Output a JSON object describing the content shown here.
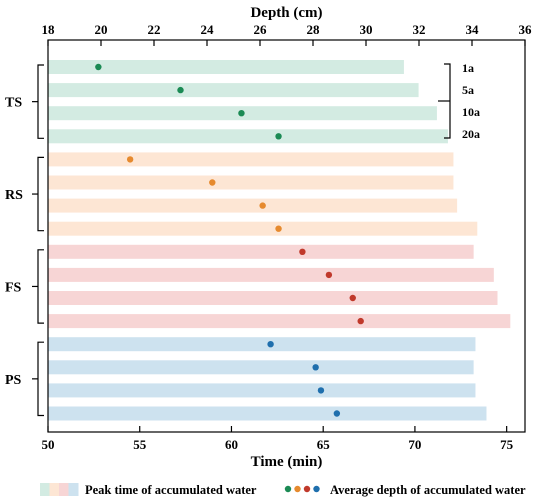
{
  "chart_data": {
    "type": "bar",
    "bottom_axis": {
      "label": "Time (min)",
      "range": [
        50,
        76
      ],
      "ticks": [
        50,
        55,
        60,
        65,
        70,
        75
      ]
    },
    "top_axis": {
      "label": "Depth (cm)",
      "range": [
        18,
        36
      ],
      "ticks": [
        18,
        20,
        22,
        24,
        26,
        28,
        30,
        32,
        34,
        36
      ]
    },
    "year_legend": [
      "1a",
      "5a",
      "10a",
      "20a"
    ],
    "groups": [
      {
        "name": "TS",
        "bar_color": "#d3ebe2",
        "dot_color": "#1b8a54",
        "rows": [
          {
            "year": "1a",
            "peak_time": 69.4,
            "avg_depth": 19.9
          },
          {
            "year": "5a",
            "peak_time": 70.2,
            "avg_depth": 23.0
          },
          {
            "year": "10a",
            "peak_time": 71.2,
            "avg_depth": 25.3
          },
          {
            "year": "20a",
            "peak_time": 71.8,
            "avg_depth": 26.7
          }
        ]
      },
      {
        "name": "RS",
        "bar_color": "#fde6d4",
        "dot_color": "#e68a2e",
        "rows": [
          {
            "year": "1a",
            "peak_time": 72.1,
            "avg_depth": 21.1
          },
          {
            "year": "5a",
            "peak_time": 72.1,
            "avg_depth": 24.2
          },
          {
            "year": "10a",
            "peak_time": 72.3,
            "avg_depth": 26.1
          },
          {
            "year": "20a",
            "peak_time": 73.4,
            "avg_depth": 26.7
          }
        ]
      },
      {
        "name": "FS",
        "bar_color": "#f7d5d5",
        "dot_color": "#c0392b",
        "rows": [
          {
            "year": "1a",
            "peak_time": 73.2,
            "avg_depth": 27.6
          },
          {
            "year": "5a",
            "peak_time": 74.3,
            "avg_depth": 28.6
          },
          {
            "year": "10a",
            "peak_time": 74.5,
            "avg_depth": 29.5
          },
          {
            "year": "20a",
            "peak_time": 75.2,
            "avg_depth": 29.8
          }
        ]
      },
      {
        "name": "PS",
        "bar_color": "#cde2ef",
        "dot_color": "#1f6fad",
        "rows": [
          {
            "year": "1a",
            "peak_time": 73.3,
            "avg_depth": 26.4
          },
          {
            "year": "5a",
            "peak_time": 73.2,
            "avg_depth": 28.1
          },
          {
            "year": "10a",
            "peak_time": 73.3,
            "avg_depth": 28.3
          },
          {
            "year": "20a",
            "peak_time": 73.9,
            "avg_depth": 28.9
          }
        ]
      }
    ],
    "legend": {
      "bars_label": "Peak time of accumulated water",
      "dots_label": "Average depth of accumulated water"
    }
  }
}
